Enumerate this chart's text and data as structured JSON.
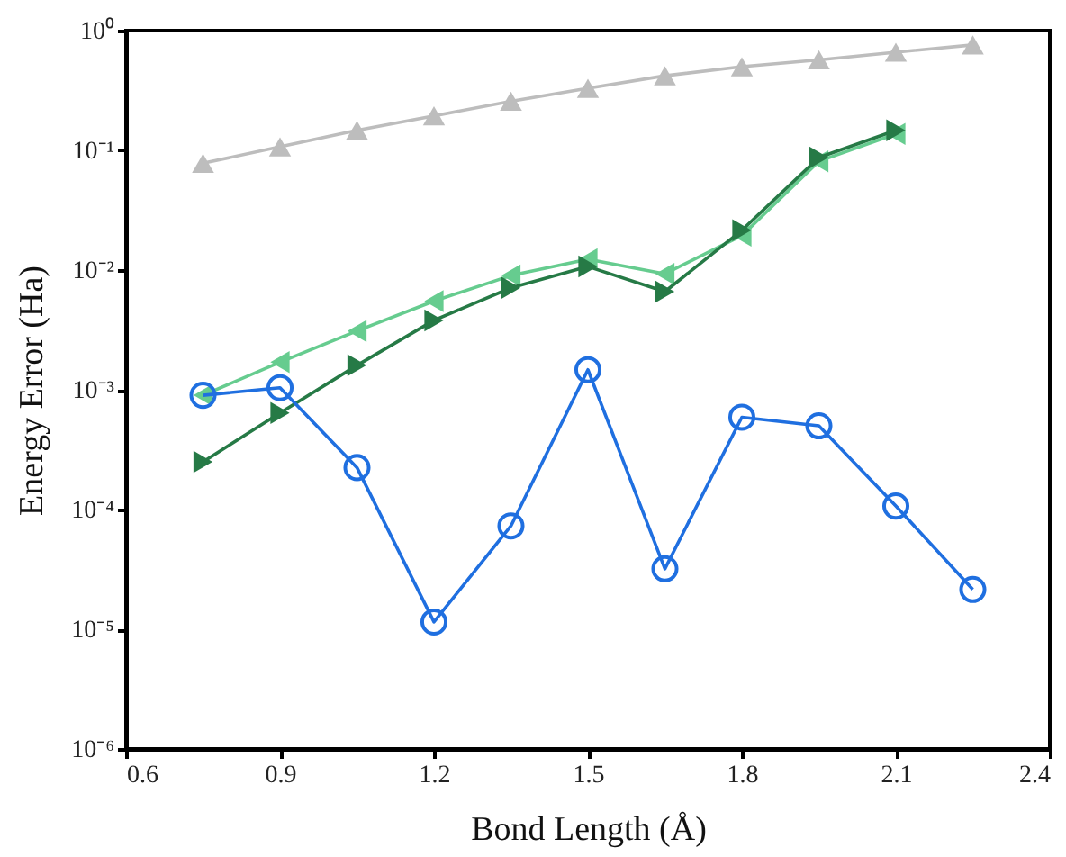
{
  "chart_data": {
    "type": "line",
    "xlabel": "Bond Length (Å)",
    "ylabel": "Energy Error (Ha)",
    "log": "y",
    "grid": false,
    "line_style": "solid",
    "xlim": [
      0.6,
      2.4
    ],
    "xticks": [
      0.6,
      0.9,
      1.2,
      1.5,
      1.8,
      2.1,
      2.4
    ],
    "ylim": [
      1e-06,
      1
    ],
    "yticks": [
      {
        "value": 1e-06,
        "label": "10⁻⁶"
      },
      {
        "value": 1e-05,
        "label": "10⁻⁵"
      },
      {
        "value": 0.0001,
        "label": "10⁻⁴"
      },
      {
        "value": 0.001,
        "label": "10⁻³"
      },
      {
        "value": 0.01,
        "label": "10⁻²"
      },
      {
        "value": 0.1,
        "label": "10⁻¹"
      },
      {
        "value": 1,
        "label": "10⁰"
      }
    ],
    "series": [
      {
        "color": "#bdbdbd",
        "marker": "triangle",
        "x": [
          0.75,
          0.9,
          1.05,
          1.2,
          1.35,
          1.5,
          1.65,
          1.8,
          1.95,
          2.1,
          2.25
        ],
        "values": [
          0.078,
          0.107,
          0.147,
          0.194,
          0.257,
          0.33,
          0.42,
          0.5,
          0.57,
          0.66,
          0.76
        ]
      },
      {
        "color": "#66cc8f",
        "marker": "triangle-left",
        "x": [
          0.75,
          0.9,
          1.05,
          1.2,
          1.35,
          1.5,
          1.65,
          1.8,
          1.95,
          2.1
        ],
        "values": [
          0.0009,
          0.0017,
          0.0031,
          0.0055,
          0.009,
          0.0123,
          0.0093,
          0.0194,
          0.081,
          0.137
        ]
      },
      {
        "color": "#267a46",
        "marker": "triangle-right",
        "x": [
          0.75,
          0.9,
          1.05,
          1.2,
          1.35,
          1.5,
          1.65,
          1.8,
          1.95,
          2.1
        ],
        "values": [
          0.00025,
          0.00064,
          0.0016,
          0.0038,
          0.0071,
          0.0107,
          0.0066,
          0.0215,
          0.087,
          0.147
        ]
      },
      {
        "color": "#1f6fe0",
        "marker": "circle",
        "x": [
          0.75,
          0.9,
          1.05,
          1.2,
          1.35,
          1.5,
          1.65,
          1.8,
          1.95,
          2.1,
          2.25
        ],
        "values": [
          0.0009,
          0.00104,
          0.000224,
          1.15e-05,
          7.3e-05,
          0.00147,
          3.2e-05,
          0.00059,
          0.0005,
          0.000107,
          2.15e-05
        ]
      }
    ]
  }
}
